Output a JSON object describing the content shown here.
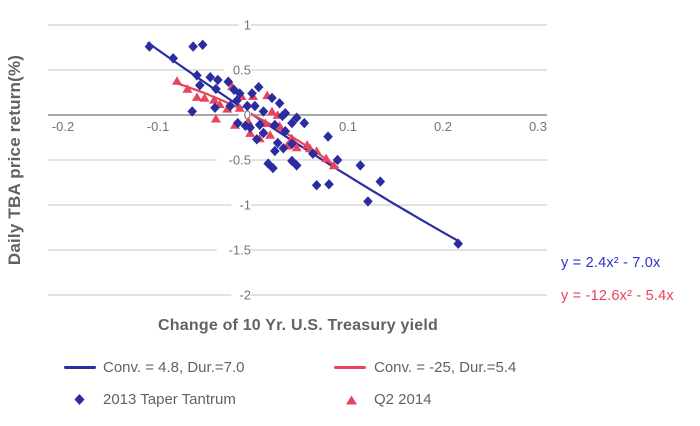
{
  "style": {
    "grid": "#d9d9d9",
    "zero_axis": "#a8a8a8",
    "tick_text": "#757575",
    "title_text": "#5f6368",
    "blue": "#2a2da0",
    "red": "#e8445f",
    "eq_blue": "#2336c4",
    "eq_red": "#e8415e"
  },
  "chart_data": {
    "type": "scatter",
    "title": "",
    "xlabel": "Change of 10 Yr. U.S. Treasury yield",
    "ylabel": "Daily TBA price return(%)",
    "xlim": [
      -0.2,
      0.3
    ],
    "ylim": [
      -2,
      1
    ],
    "x_ticks": [
      -0.2,
      -0.1,
      0.1,
      0.2,
      0.3
    ],
    "y_ticks": [
      1,
      0.5,
      0,
      -0.5,
      -1,
      -1.5,
      -2
    ],
    "grid": "horizontal-only",
    "legend_position": "bottom",
    "series": [
      {
        "name": "2013 Taper Tantrum",
        "marker": "diamond",
        "color": "#2a2da0",
        "points": [
          [
            -0.109,
            0.76
          ],
          [
            -0.084,
            0.63
          ],
          [
            -0.063,
            0.76
          ],
          [
            -0.053,
            0.78
          ],
          [
            -0.059,
            0.44
          ],
          [
            -0.045,
            0.42
          ],
          [
            -0.037,
            0.39
          ],
          [
            -0.026,
            0.37
          ],
          [
            -0.056,
            0.33
          ],
          [
            -0.039,
            0.29
          ],
          [
            -0.02,
            0.28
          ],
          [
            0.006,
            0.31
          ],
          [
            -0.001,
            0.24
          ],
          [
            -0.014,
            0.24
          ],
          [
            -0.064,
            0.04
          ],
          [
            -0.04,
            0.08
          ],
          [
            -0.024,
            0.1
          ],
          [
            -0.006,
            0.1
          ],
          [
            0.002,
            0.1
          ],
          [
            0.011,
            0.04
          ],
          [
            0.02,
            0.19
          ],
          [
            0.028,
            0.13
          ],
          [
            -0.017,
            0.16
          ],
          [
            0.034,
            0.02
          ],
          [
            0.031,
            -0.01
          ],
          [
            0.041,
            -0.09
          ],
          [
            0.046,
            -0.03
          ],
          [
            0.054,
            -0.09
          ],
          [
            -0.008,
            -0.12
          ],
          [
            0.007,
            -0.11
          ],
          [
            0.023,
            -0.11
          ],
          [
            -0.016,
            -0.09
          ],
          [
            -0.003,
            -0.14
          ],
          [
            0.004,
            -0.27
          ],
          [
            0.011,
            -0.2
          ],
          [
            0.034,
            -0.18
          ],
          [
            0.026,
            -0.31
          ],
          [
            0.032,
            -0.37
          ],
          [
            0.041,
            -0.32
          ],
          [
            0.079,
            -0.24
          ],
          [
            0.063,
            -0.43
          ],
          [
            0.089,
            -0.5
          ],
          [
            0.023,
            -0.4
          ],
          [
            0.016,
            -0.54
          ],
          [
            0.021,
            -0.59
          ],
          [
            0.041,
            -0.51
          ],
          [
            0.046,
            -0.56
          ],
          [
            0.067,
            -0.78
          ],
          [
            0.08,
            -0.77
          ],
          [
            0.113,
            -0.56
          ],
          [
            0.134,
            -0.74
          ],
          [
            0.121,
            -0.96
          ],
          [
            0.216,
            -1.43
          ]
        ]
      },
      {
        "name": "Q2 2014",
        "marker": "triangle",
        "color": "#e8445f",
        "points": [
          [
            -0.08,
            0.38
          ],
          [
            -0.069,
            0.29
          ],
          [
            -0.059,
            0.2
          ],
          [
            -0.051,
            0.19
          ],
          [
            -0.041,
            0.17
          ],
          [
            -0.035,
            0.12
          ],
          [
            -0.027,
            0.07
          ],
          [
            -0.022,
            0.32
          ],
          [
            -0.012,
            0.21
          ],
          [
            0.0,
            0.21
          ],
          [
            0.015,
            0.22
          ],
          [
            -0.039,
            -0.04
          ],
          [
            -0.014,
            0.08
          ],
          [
            -0.019,
            -0.11
          ],
          [
            -0.005,
            -0.07
          ],
          [
            0.013,
            -0.09
          ],
          [
            0.02,
            0.04
          ],
          [
            0.026,
            0.0
          ],
          [
            0.028,
            -0.12
          ],
          [
            -0.003,
            -0.2
          ],
          [
            0.018,
            -0.22
          ],
          [
            0.007,
            -0.26
          ],
          [
            0.041,
            -0.26
          ],
          [
            0.036,
            -0.34
          ],
          [
            0.046,
            -0.36
          ],
          [
            0.057,
            -0.33
          ],
          [
            0.06,
            -0.37
          ],
          [
            0.067,
            -0.4
          ],
          [
            0.077,
            -0.48
          ],
          [
            0.085,
            -0.56
          ]
        ]
      }
    ],
    "trendlines": [
      {
        "name": "Conv. = 4.8, Dur.=7.0",
        "color": "#2a2da0",
        "equation": "y = 2.4x² - 7.0x",
        "equation_color": "#2336c4",
        "a": 2.4,
        "b": -7.0,
        "x_range": [
          -0.111,
          0.217
        ]
      },
      {
        "name": "Conv. = -25, Dur.=5.4",
        "color": "#e8445f",
        "equation": "y = -12.6x² - 5.4x",
        "equation_color": "#e8415e",
        "a": -12.6,
        "b": -5.4,
        "x_range": [
          -0.082,
          0.09
        ]
      }
    ]
  }
}
